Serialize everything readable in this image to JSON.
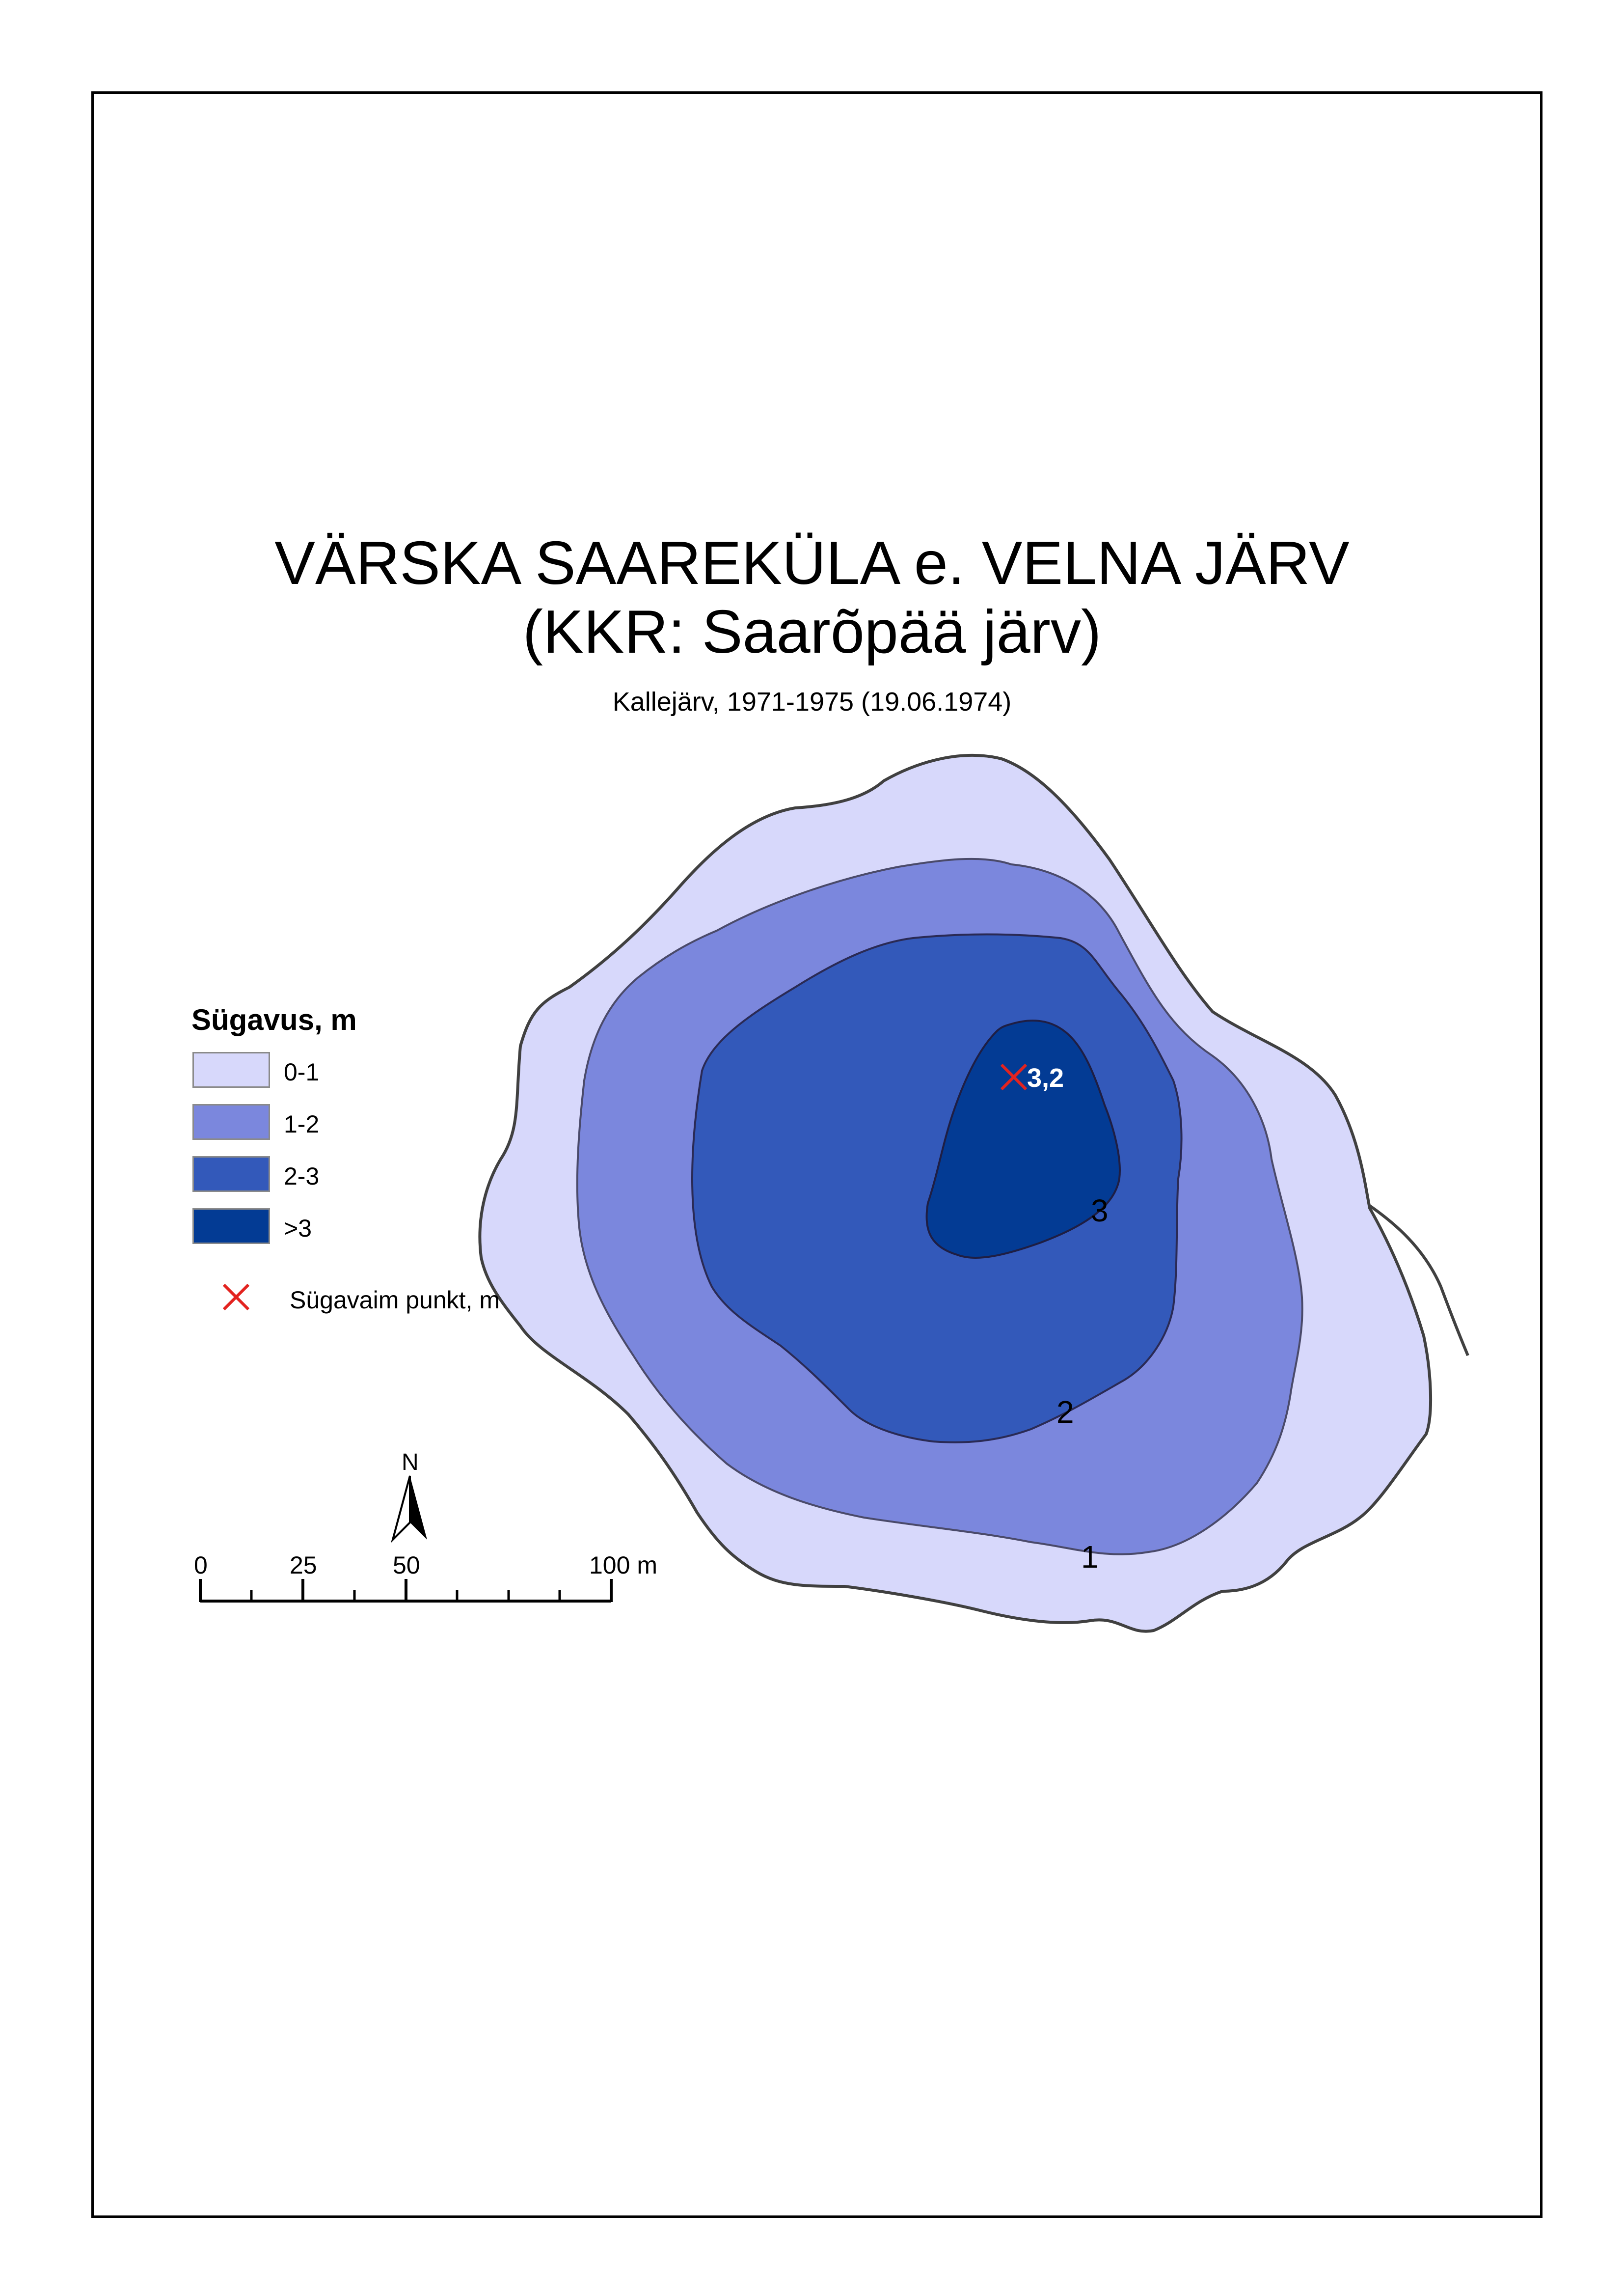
{
  "title": {
    "line1": "VÄRSKA SAAREKÜLA e. VELNA JÄRV",
    "line2": "(KKR: Saarõpää järv)"
  },
  "subtitle": "Kallejärv, 1971-1975 (19.06.1974)",
  "legend": {
    "title": "Sügavus, m",
    "items": [
      {
        "label": "0-1",
        "color": "#d7d8fb"
      },
      {
        "label": "1-2",
        "color": "#7b87dd"
      },
      {
        "label": "2-3",
        "color": "#3359ba"
      },
      {
        "label": ">3",
        "color": "#033b94"
      }
    ],
    "deepest_point_label": "Sügavaim punkt, m",
    "deepest_point_color": "#e3231f"
  },
  "map": {
    "deepest_value": "3,2",
    "contour_labels": [
      "1",
      "2",
      "3"
    ],
    "shoreline_color": "#404040"
  },
  "north_arrow": {
    "label": "N"
  },
  "scale_bar": {
    "labels": [
      "0",
      "25",
      "50",
      "100 m"
    ]
  }
}
